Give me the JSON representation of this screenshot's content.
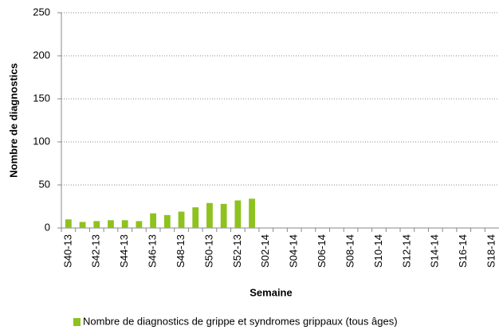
{
  "chart_data": {
    "type": "bar",
    "x_label": "Semaine",
    "y_label": "Nombre de diagnostics",
    "categories": [
      "S40-13",
      null,
      "S42-13",
      null,
      "S44-13",
      null,
      "S46-13",
      null,
      "S48-13",
      null,
      "S50-13",
      null,
      "S52-13",
      null,
      "S02-14",
      null,
      "S04-14",
      null,
      "S06-14",
      null,
      "S08-14",
      null,
      "S10-14",
      null,
      "S12-14",
      null,
      "S14-14",
      null,
      "S16-14",
      null,
      "S18-14"
    ],
    "series": [
      {
        "name": "Nombre de diagnostics de grippe et syndromes grippaux (tous âges)",
        "color": "#8dc21f",
        "values": [
          10,
          7,
          8,
          9,
          9,
          8,
          17,
          15,
          19,
          24,
          29,
          28,
          32,
          34,
          null,
          null,
          null,
          null,
          null,
          null,
          null,
          null,
          null,
          null,
          null,
          null,
          null,
          null,
          null,
          null,
          null
        ]
      }
    ],
    "ylim": [
      0,
      250
    ],
    "yticks": [
      0,
      50,
      100,
      150,
      200,
      250
    ],
    "grid": true
  }
}
